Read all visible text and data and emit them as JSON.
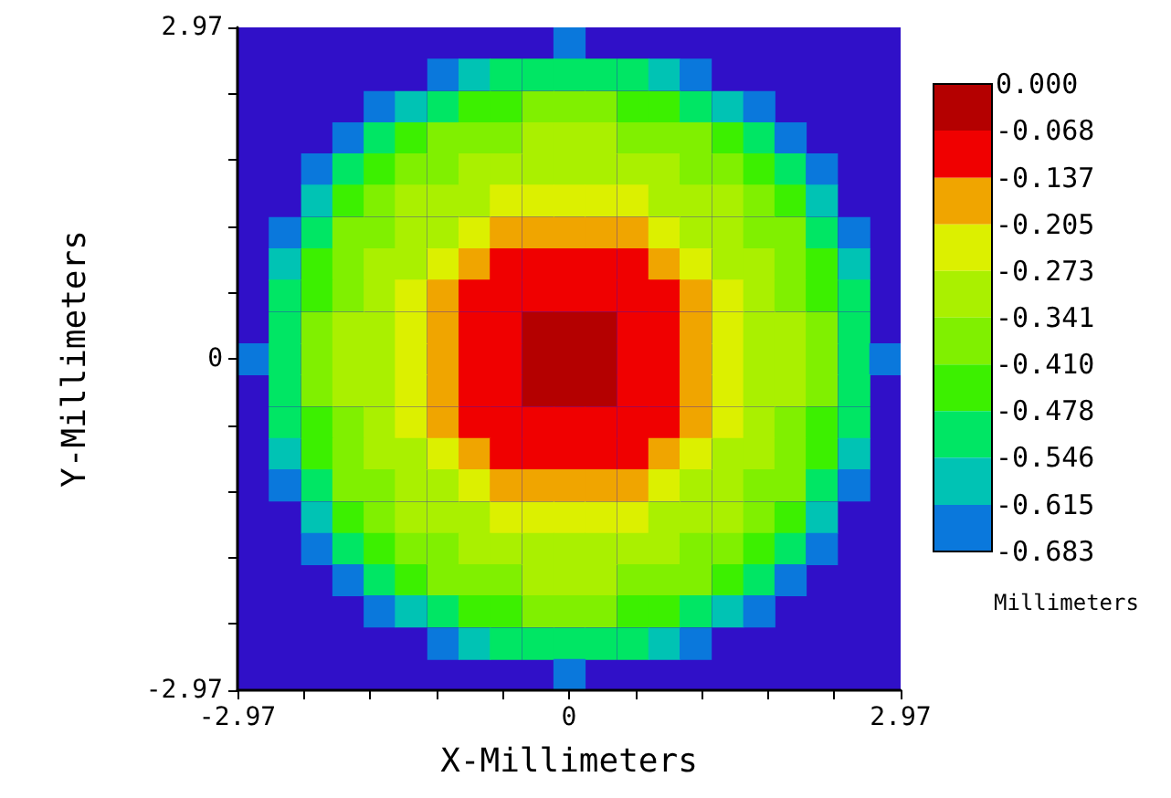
{
  "chart_data": {
    "type": "heatmap",
    "xlabel": "X-Millimeters",
    "ylabel": "Y-Millimeters",
    "clabel": "Millimeters",
    "xlim": [
      -2.97,
      2.97
    ],
    "xticks": [
      -2.97,
      {
        "value": -2.376,
        "label": null
      },
      {
        "value": -1.782,
        "label": null
      },
      {
        "value": -1.188,
        "label": null
      },
      {
        "value": -0.594,
        "label": null
      },
      0,
      {
        "value": 0.594,
        "label": null
      },
      {
        "value": 1.188,
        "label": null
      },
      {
        "value": 1.782,
        "label": null
      },
      {
        "value": 2.376,
        "label": null
      },
      2.97
    ],
    "ylim": [
      -2.97,
      2.97
    ],
    "yticks": [
      -2.97,
      {
        "value": -2.376,
        "label": null
      },
      {
        "value": -1.782,
        "label": null
      },
      {
        "value": -1.188,
        "label": null
      },
      {
        "value": -0.594,
        "label": null
      },
      0,
      {
        "value": 0.594,
        "label": null
      },
      {
        "value": 1.188,
        "label": null
      },
      {
        "value": 1.782,
        "label": null
      },
      {
        "value": 2.376,
        "label": null
      },
      2.97
    ],
    "clim": [
      -0.683,
      0
    ],
    "cticks": [
      {
        "value": 0,
        "label": "0.000"
      },
      -0.068,
      -0.137,
      -0.205,
      -0.273,
      -0.341,
      {
        "value": -0.41,
        "label": "-0.410"
      },
      -0.478,
      -0.546,
      -0.615,
      -0.683
    ],
    "colors": [
      "#b40000",
      "#f00000",
      "#f0a500",
      "#dcf000",
      "#aaf000",
      "#80f000",
      "#3cf000",
      "#00e664",
      "#00c3b4",
      "#0a78dc"
    ],
    "x": [
      -2.83,
      -2.55,
      -2.26,
      -1.98,
      -1.7,
      -1.42,
      -1.13,
      -0.85,
      -0.57,
      -0.28,
      0,
      0.28,
      0.57,
      0.85,
      1.13,
      1.42,
      1.7,
      1.98,
      2.26,
      2.55,
      2.83
    ],
    "y": [
      2.83,
      2.55,
      2.26,
      1.98,
      1.7,
      1.42,
      1.13,
      0.85,
      0.57,
      0.28,
      0,
      -0.28,
      -0.57,
      -0.85,
      -1.13,
      -1.42,
      -1.7,
      -1.98,
      -2.26,
      -2.55,
      -2.83
    ],
    "cells": [
      [
        null,
        null,
        null,
        null,
        null,
        null,
        null,
        null,
        null,
        null,
        -0.68,
        null,
        null,
        null,
        null,
        null,
        null,
        null,
        null,
        null,
        null
      ],
      [
        null,
        null,
        null,
        null,
        null,
        null,
        -0.65,
        -0.56,
        -0.52,
        -0.5,
        -0.5,
        -0.5,
        -0.52,
        -0.56,
        -0.65,
        null,
        null,
        null,
        null,
        null,
        null
      ],
      [
        null,
        null,
        null,
        null,
        -0.68,
        -0.55,
        -0.49,
        -0.45,
        -0.42,
        -0.41,
        -0.4,
        -0.41,
        -0.42,
        -0.45,
        -0.49,
        -0.55,
        -0.68,
        null,
        null,
        null,
        null
      ],
      [
        null,
        null,
        null,
        -0.66,
        -0.52,
        -0.46,
        -0.41,
        -0.38,
        -0.36,
        -0.34,
        -0.34,
        -0.34,
        -0.36,
        -0.38,
        -0.41,
        -0.46,
        -0.52,
        -0.66,
        null,
        null,
        null
      ],
      [
        null,
        null,
        -0.68,
        -0.52,
        -0.45,
        -0.39,
        -0.35,
        -0.32,
        -0.31,
        -0.3,
        -0.29,
        -0.3,
        -0.31,
        -0.32,
        -0.35,
        -0.39,
        -0.45,
        -0.52,
        -0.68,
        null,
        null
      ],
      [
        null,
        null,
        -0.55,
        -0.46,
        -0.39,
        -0.34,
        -0.31,
        -0.28,
        -0.26,
        -0.24,
        -0.24,
        -0.24,
        -0.26,
        -0.28,
        -0.31,
        -0.34,
        -0.39,
        -0.46,
        -0.55,
        null,
        null
      ],
      [
        null,
        -0.65,
        -0.49,
        -0.41,
        -0.35,
        -0.31,
        -0.28,
        -0.24,
        -0.2,
        -0.17,
        -0.15,
        -0.17,
        -0.2,
        -0.24,
        -0.28,
        -0.31,
        -0.35,
        -0.41,
        -0.49,
        -0.65,
        null
      ],
      [
        null,
        -0.56,
        -0.45,
        -0.38,
        -0.32,
        -0.28,
        -0.24,
        -0.18,
        -0.13,
        -0.11,
        -0.11,
        -0.11,
        -0.13,
        -0.18,
        -0.24,
        -0.28,
        -0.32,
        -0.38,
        -0.45,
        -0.56,
        null
      ],
      [
        null,
        -0.52,
        -0.42,
        -0.36,
        -0.31,
        -0.26,
        -0.2,
        -0.13,
        -0.1,
        -0.08,
        -0.07,
        -0.08,
        -0.1,
        -0.13,
        -0.2,
        -0.26,
        -0.31,
        -0.36,
        -0.42,
        -0.52,
        null
      ],
      [
        null,
        -0.5,
        -0.41,
        -0.34,
        -0.3,
        -0.24,
        -0.17,
        -0.11,
        -0.08,
        -0.05,
        -0.04,
        -0.05,
        -0.08,
        -0.11,
        -0.17,
        -0.24,
        -0.3,
        -0.34,
        -0.41,
        -0.5,
        null
      ],
      [
        -0.68,
        -0.5,
        -0.4,
        -0.34,
        -0.29,
        -0.24,
        -0.15,
        -0.11,
        -0.07,
        -0.04,
        0,
        -0.04,
        -0.07,
        -0.11,
        -0.15,
        -0.24,
        -0.29,
        -0.34,
        -0.4,
        -0.5,
        -0.68
      ],
      [
        null,
        -0.5,
        -0.41,
        -0.34,
        -0.3,
        -0.24,
        -0.17,
        -0.11,
        -0.08,
        -0.05,
        -0.04,
        -0.05,
        -0.08,
        -0.11,
        -0.17,
        -0.24,
        -0.3,
        -0.34,
        -0.41,
        -0.5,
        null
      ],
      [
        null,
        -0.52,
        -0.42,
        -0.36,
        -0.31,
        -0.26,
        -0.2,
        -0.13,
        -0.1,
        -0.08,
        -0.07,
        -0.08,
        -0.1,
        -0.13,
        -0.2,
        -0.26,
        -0.31,
        -0.36,
        -0.42,
        -0.52,
        null
      ],
      [
        null,
        -0.56,
        -0.45,
        -0.38,
        -0.32,
        -0.28,
        -0.24,
        -0.18,
        -0.13,
        -0.11,
        -0.11,
        -0.11,
        -0.13,
        -0.18,
        -0.24,
        -0.28,
        -0.32,
        -0.38,
        -0.45,
        -0.56,
        null
      ],
      [
        null,
        -0.65,
        -0.49,
        -0.41,
        -0.35,
        -0.31,
        -0.28,
        -0.24,
        -0.2,
        -0.17,
        -0.15,
        -0.17,
        -0.2,
        -0.24,
        -0.28,
        -0.31,
        -0.35,
        -0.41,
        -0.49,
        -0.65,
        null
      ],
      [
        null,
        null,
        -0.55,
        -0.46,
        -0.39,
        -0.34,
        -0.31,
        -0.28,
        -0.26,
        -0.24,
        -0.24,
        -0.24,
        -0.26,
        -0.28,
        -0.31,
        -0.34,
        -0.39,
        -0.46,
        -0.55,
        null,
        null
      ],
      [
        null,
        null,
        -0.68,
        -0.52,
        -0.45,
        -0.39,
        -0.35,
        -0.32,
        -0.31,
        -0.3,
        -0.29,
        -0.3,
        -0.31,
        -0.32,
        -0.35,
        -0.39,
        -0.45,
        -0.52,
        -0.68,
        null,
        null
      ],
      [
        null,
        null,
        null,
        -0.66,
        -0.52,
        -0.46,
        -0.41,
        -0.38,
        -0.36,
        -0.34,
        -0.34,
        -0.34,
        -0.36,
        -0.38,
        -0.41,
        -0.46,
        -0.52,
        -0.66,
        null,
        null,
        null
      ],
      [
        null,
        null,
        null,
        null,
        -0.68,
        -0.55,
        -0.49,
        -0.45,
        -0.42,
        -0.41,
        -0.4,
        -0.41,
        -0.42,
        -0.45,
        -0.49,
        -0.55,
        -0.68,
        null,
        null,
        null,
        null
      ],
      [
        null,
        null,
        null,
        null,
        null,
        null,
        -0.65,
        -0.56,
        -0.52,
        -0.5,
        -0.5,
        -0.5,
        -0.52,
        -0.56,
        -0.65,
        null,
        null,
        null,
        null,
        null,
        null
      ],
      [
        null,
        null,
        null,
        null,
        null,
        null,
        null,
        null,
        null,
        null,
        -0.68,
        null,
        null,
        null,
        null,
        null,
        null,
        null,
        null,
        null,
        null
      ]
    ]
  }
}
